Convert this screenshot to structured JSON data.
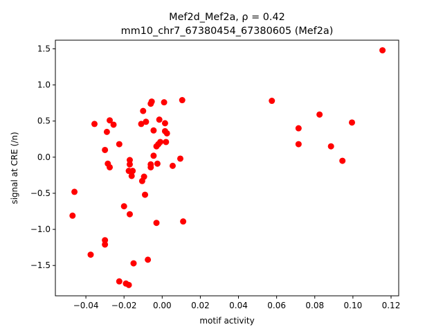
{
  "chart_data": {
    "type": "scatter",
    "title_line1": "Mef2d_Mef2a, ρ = 0.42",
    "title_line2": "mm10_chr7_67380454_67380605 (Mef2a)",
    "xlabel": "motif activity",
    "ylabel": "signal at CRE (/n)",
    "xlim": [
      -0.056,
      0.124
    ],
    "ylim": [
      -1.92,
      1.62
    ],
    "x_ticks": [
      -0.04,
      -0.02,
      0.0,
      0.02,
      0.04,
      0.06,
      0.08,
      0.1,
      0.12
    ],
    "x_tick_labels": [
      "−0.04",
      "−0.02",
      "0.00",
      "0.02",
      "0.04",
      "0.06",
      "0.08",
      "0.10",
      "0.12"
    ],
    "y_ticks": [
      -1.5,
      -1.0,
      -0.5,
      0.0,
      0.5,
      1.0,
      1.5
    ],
    "y_tick_labels": [
      "−1.5",
      "−1.0",
      "−0.5",
      "0.0",
      "0.5",
      "1.0",
      "1.5"
    ],
    "grid": false,
    "marker_color": "#ff0000",
    "points": [
      {
        "x": 0.1155,
        "y": 1.48
      },
      {
        "x": 0.0575,
        "y": 0.78
      },
      {
        "x": 0.0825,
        "y": 0.59
      },
      {
        "x": 0.0995,
        "y": 0.48
      },
      {
        "x": 0.0715,
        "y": 0.4
      },
      {
        "x": 0.0715,
        "y": 0.18
      },
      {
        "x": 0.0885,
        "y": 0.15
      },
      {
        "x": 0.0945,
        "y": -0.05
      },
      {
        "x": 0.0105,
        "y": 0.79
      },
      {
        "x": 0.001,
        "y": 0.76
      },
      {
        "x": -0.0055,
        "y": 0.77
      },
      {
        "x": -0.006,
        "y": 0.74
      },
      {
        "x": -0.01,
        "y": 0.64
      },
      {
        "x": -0.0015,
        "y": 0.52
      },
      {
        "x": -0.0085,
        "y": 0.49
      },
      {
        "x": -0.011,
        "y": 0.46
      },
      {
        "x": 0.0015,
        "y": 0.47
      },
      {
        "x": -0.0045,
        "y": 0.37
      },
      {
        "x": 0.0015,
        "y": 0.36
      },
      {
        "x": 0.0025,
        "y": 0.33
      },
      {
        "x": -0.0275,
        "y": 0.51
      },
      {
        "x": -0.0255,
        "y": 0.45
      },
      {
        "x": -0.0355,
        "y": 0.46
      },
      {
        "x": -0.029,
        "y": 0.35
      },
      {
        "x": -0.0225,
        "y": 0.18
      },
      {
        "x": -0.03,
        "y": 0.1
      },
      {
        "x": -0.001,
        "y": 0.21
      },
      {
        "x": 0.002,
        "y": 0.21
      },
      {
        "x": -0.002,
        "y": 0.18
      },
      {
        "x": -0.003,
        "y": 0.15
      },
      {
        "x": -0.0045,
        "y": 0.02
      },
      {
        "x": 0.0095,
        "y": -0.02
      },
      {
        "x": -0.0025,
        "y": -0.09
      },
      {
        "x": -0.006,
        "y": -0.1
      },
      {
        "x": -0.006,
        "y": -0.14
      },
      {
        "x": -0.0285,
        "y": -0.09
      },
      {
        "x": -0.0275,
        "y": -0.14
      },
      {
        "x": -0.017,
        "y": -0.04
      },
      {
        "x": -0.017,
        "y": -0.1
      },
      {
        "x": -0.0175,
        "y": -0.19
      },
      {
        "x": -0.0155,
        "y": -0.19
      },
      {
        "x": -0.016,
        "y": -0.26
      },
      {
        "x": -0.0095,
        "y": -0.27
      },
      {
        "x": -0.0105,
        "y": -0.33
      },
      {
        "x": 0.0055,
        "y": -0.12
      },
      {
        "x": -0.046,
        "y": -0.48
      },
      {
        "x": -0.009,
        "y": -0.52
      },
      {
        "x": -0.02,
        "y": -0.68
      },
      {
        "x": -0.047,
        "y": -0.81
      },
      {
        "x": -0.017,
        "y": -0.79
      },
      {
        "x": -0.003,
        "y": -0.91
      },
      {
        "x": 0.011,
        "y": -0.89
      },
      {
        "x": -0.03,
        "y": -1.15
      },
      {
        "x": -0.03,
        "y": -1.21
      },
      {
        "x": -0.0375,
        "y": -1.35
      },
      {
        "x": -0.0075,
        "y": -1.42
      },
      {
        "x": -0.015,
        "y": -1.47
      },
      {
        "x": -0.0225,
        "y": -1.72
      },
      {
        "x": -0.019,
        "y": -1.75
      },
      {
        "x": -0.0175,
        "y": -1.77
      }
    ]
  }
}
